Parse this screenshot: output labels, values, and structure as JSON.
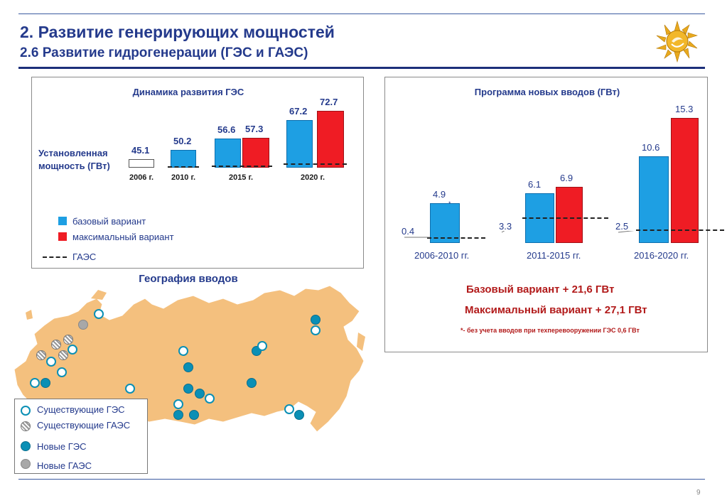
{
  "header": {
    "title": "2. Развитие генерирующих мощностей",
    "subtitle": "2.6 Развитие гидрогенерации (ГЭС и ГАЭС)",
    "logo_icon": "sun-logo-icon"
  },
  "left_panel": {
    "title": "Динамика развития ГЭС",
    "axis_label_line1": "Установленная",
    "axis_label_line2": "мощность (ГВт)",
    "legend": {
      "base": "базовый вариант",
      "max": "максимальный вариант",
      "gaes": "ГАЭС"
    }
  },
  "right_panel": {
    "title": "Программа новых вводов (ГВт)",
    "base_total": "Базовый вариант + 21,6 ГВт",
    "max_total": "Максимальный вариант + 27,1 ГВт",
    "footnote": "*- без учета вводов при техперевооружении ГЭС 0,6 ГВт",
    "asterisk": "*"
  },
  "map": {
    "title": "География вводов",
    "legend": {
      "existing_hpp": "Существующие ГЭС",
      "existing_pspp": "Существующие ГАЭС",
      "new_hpp": "Новые ГЭС",
      "new_pspp": "Новые ГАЭС"
    }
  },
  "colors": {
    "title": "#243a8c",
    "base": "#1e9fe3",
    "max": "#ef1c24",
    "map_fill": "#f4c07e",
    "totals": "#b21a1a"
  },
  "chart_data": [
    {
      "type": "bar",
      "title": "Динамика развития ГЭС",
      "ylabel": "Установленная мощность (ГВт)",
      "categories": [
        "2006 г.",
        "2010 г.",
        "2015 г.",
        "2020 г."
      ],
      "series": [
        {
          "name": "базовый вариант",
          "values": [
            45.1,
            50.2,
            56.6,
            67.2
          ]
        },
        {
          "name": "максимальный вариант",
          "values": [
            null,
            null,
            57.3,
            72.7
          ]
        }
      ],
      "gaes_line": true,
      "labels": [
        "45.1",
        "50.2",
        "56.6",
        "57.3",
        "67.2",
        "72.7"
      ],
      "ylim": [
        40,
        75
      ]
    },
    {
      "type": "bar",
      "title": "Программа новых вводов (ГВт)",
      "categories": [
        "2006-2010 гг.",
        "2011-2015 гг.",
        "2016-2020 гг."
      ],
      "series": [
        {
          "name": "базовый вариант",
          "values": [
            4.9,
            6.1,
            10.6
          ]
        },
        {
          "name": "максимальный вариант",
          "values": [
            null,
            6.9,
            15.3
          ]
        },
        {
          "name": "ГАЭС",
          "values": [
            0.4,
            3.3,
            2.5
          ]
        }
      ],
      "labels": {
        "base": [
          "4.9",
          "6.1",
          "10.6"
        ],
        "max": [
          "6.9",
          "15.3"
        ],
        "gaes": [
          "0.4",
          "3.3",
          "2.5"
        ]
      },
      "ylim": [
        0,
        16
      ]
    }
  ],
  "page_number": "9"
}
